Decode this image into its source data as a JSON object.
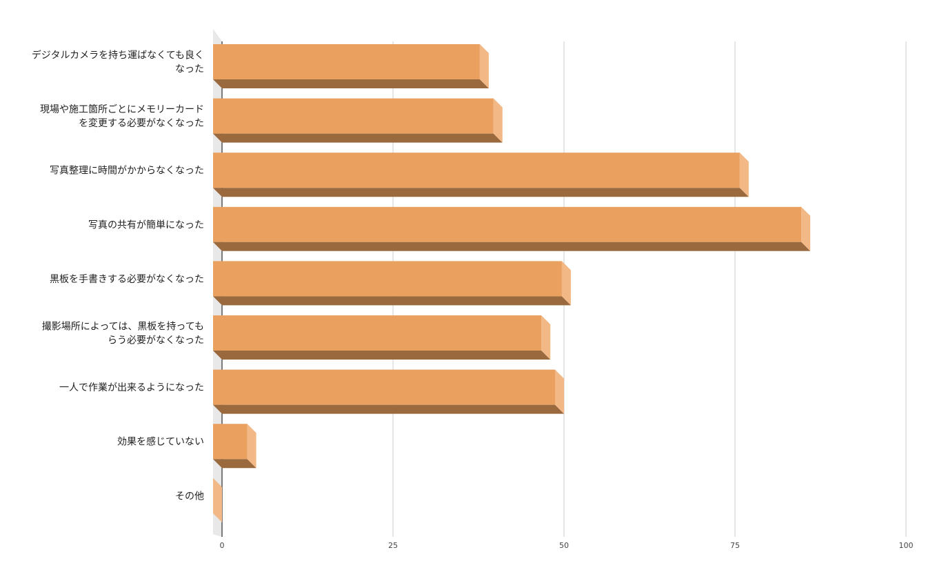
{
  "chart_data": {
    "type": "bar",
    "orientation": "horizontal",
    "style": "3d",
    "categories": [
      "デジタルカメラを持ち運ばなくても良くなった",
      "現場や施工箇所ごとにメモリーカードを変更する必要がなくなった",
      "写真整理に時間がかからなくなった",
      "写真の共有が簡単になった",
      "黒板を手書きする必要がなくなった",
      "撮影場所によっては、黒板を持ってもらう必要がなくなった",
      "一人で作業が出来るようになった",
      "効果を感じていない",
      "その他"
    ],
    "category_lines": [
      [
        "デジタルカメラを持ち運ばなくても良く",
        "なった"
      ],
      [
        "現場や施工箇所ごとにメモリーカード",
        "を変更する必要がなくなった"
      ],
      [
        "写真整理に時間がかからなくなった"
      ],
      [
        "写真の共有が簡単になった"
      ],
      [
        "黒板を手書きする必要がなくなった"
      ],
      [
        "撮影場所によっては、黒板を持っても",
        "らう必要がなくなった"
      ],
      [
        "一人で作業が出来るようになった"
      ],
      [
        "効果を感じていない"
      ],
      [
        "その他"
      ]
    ],
    "values": [
      39,
      41,
      77,
      86,
      51,
      48,
      50,
      5,
      0
    ],
    "xlim": [
      0,
      100
    ],
    "xticks": [
      0,
      25,
      50,
      75,
      100
    ],
    "grid": true,
    "legend": "none",
    "title": "",
    "xlabel": "",
    "ylabel": ""
  },
  "colors": {
    "bar_face": "#EAA05E",
    "bar_side": "#F2B987",
    "bar_bottom": "#9A6A3E",
    "gridline": "#cccccc",
    "axis_line": "#000000",
    "wall": "#e8e8e8"
  }
}
